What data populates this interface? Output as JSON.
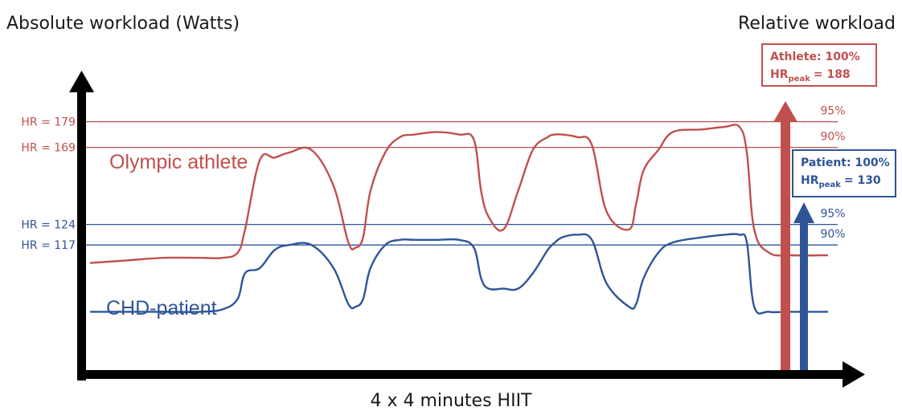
{
  "chart_data": {
    "type": "line",
    "title": "",
    "ylabel": "Absolute workload (Watts)",
    "xlabel": "4 x 4 minutes HIIT",
    "right_label": "Relative workload",
    "x_range": [
      0,
      100
    ],
    "y_range": [
      0,
      100
    ],
    "grid": false,
    "colors": {
      "athlete": "#c0504d",
      "patient": "#2f5597",
      "axis": "#000000"
    },
    "reference_lines": [
      {
        "name": "athlete-95",
        "label": "HR = 179",
        "pct": "95%",
        "y": 87,
        "series": "athlete"
      },
      {
        "name": "athlete-90",
        "label": "HR = 169",
        "pct": "90%",
        "y": 77,
        "series": "athlete"
      },
      {
        "name": "patient-95",
        "label": "HR = 124",
        "pct": "95%",
        "y": 47,
        "series": "patient"
      },
      {
        "name": "patient-90",
        "label": "HR = 117",
        "pct": "90%",
        "y": 39,
        "series": "patient"
      }
    ],
    "series": [
      {
        "name": "Olympic athlete",
        "key": "athlete",
        "x": [
          0,
          5,
          10,
          15,
          18,
          20,
          21,
          23,
          25,
          27,
          30,
          33,
          35,
          36,
          37,
          38,
          40,
          42,
          44,
          47,
          50,
          52,
          53,
          54,
          56,
          58,
          60,
          62,
          63,
          64,
          66,
          68,
          70,
          73,
          74,
          75,
          77,
          79,
          83,
          86,
          88,
          89,
          90,
          92,
          95,
          100
        ],
        "values": [
          32,
          33,
          34,
          34,
          34,
          36,
          45,
          72,
          73,
          75,
          76,
          62,
          40,
          38,
          42,
          60,
          75,
          81,
          82,
          83,
          82,
          80,
          60,
          50,
          45,
          60,
          76,
          81,
          82,
          82,
          81,
          78,
          52,
          45,
          55,
          68,
          76,
          83,
          84,
          85,
          85,
          75,
          45,
          36,
          35,
          35
        ]
      },
      {
        "name": "CHD-patient",
        "key": "patient",
        "x": [
          0,
          5,
          10,
          15,
          18,
          20,
          21,
          23,
          25,
          27,
          30,
          33,
          35,
          36,
          37,
          38,
          40,
          42,
          44,
          47,
          50,
          52,
          53,
          54,
          56,
          58,
          60,
          62,
          63,
          64,
          66,
          68,
          70,
          73,
          74,
          75,
          77,
          79,
          83,
          86,
          88,
          89,
          90,
          92,
          95,
          100
        ],
        "values": [
          13,
          13,
          13,
          13,
          14,
          18,
          28,
          30,
          37,
          39,
          39,
          30,
          16,
          15,
          18,
          30,
          39,
          41,
          41,
          41,
          41,
          38,
          26,
          22,
          22,
          22,
          28,
          37,
          40,
          42,
          43,
          41,
          24,
          15,
          16,
          26,
          36,
          40,
          42,
          43,
          43,
          40,
          15,
          13,
          13,
          13
        ]
      }
    ],
    "arrows": [
      {
        "name": "athlete-arrow",
        "key": "athlete",
        "box_title": "Athlete: 100%",
        "box_hr": "HR",
        "box_hr_sub": "peak",
        "box_hr_value": "= 188"
      },
      {
        "name": "patient-arrow",
        "key": "patient",
        "box_title": "Patient: 100%",
        "box_hr": "HR",
        "box_hr_sub": "peak",
        "box_hr_value": "= 130"
      }
    ]
  }
}
